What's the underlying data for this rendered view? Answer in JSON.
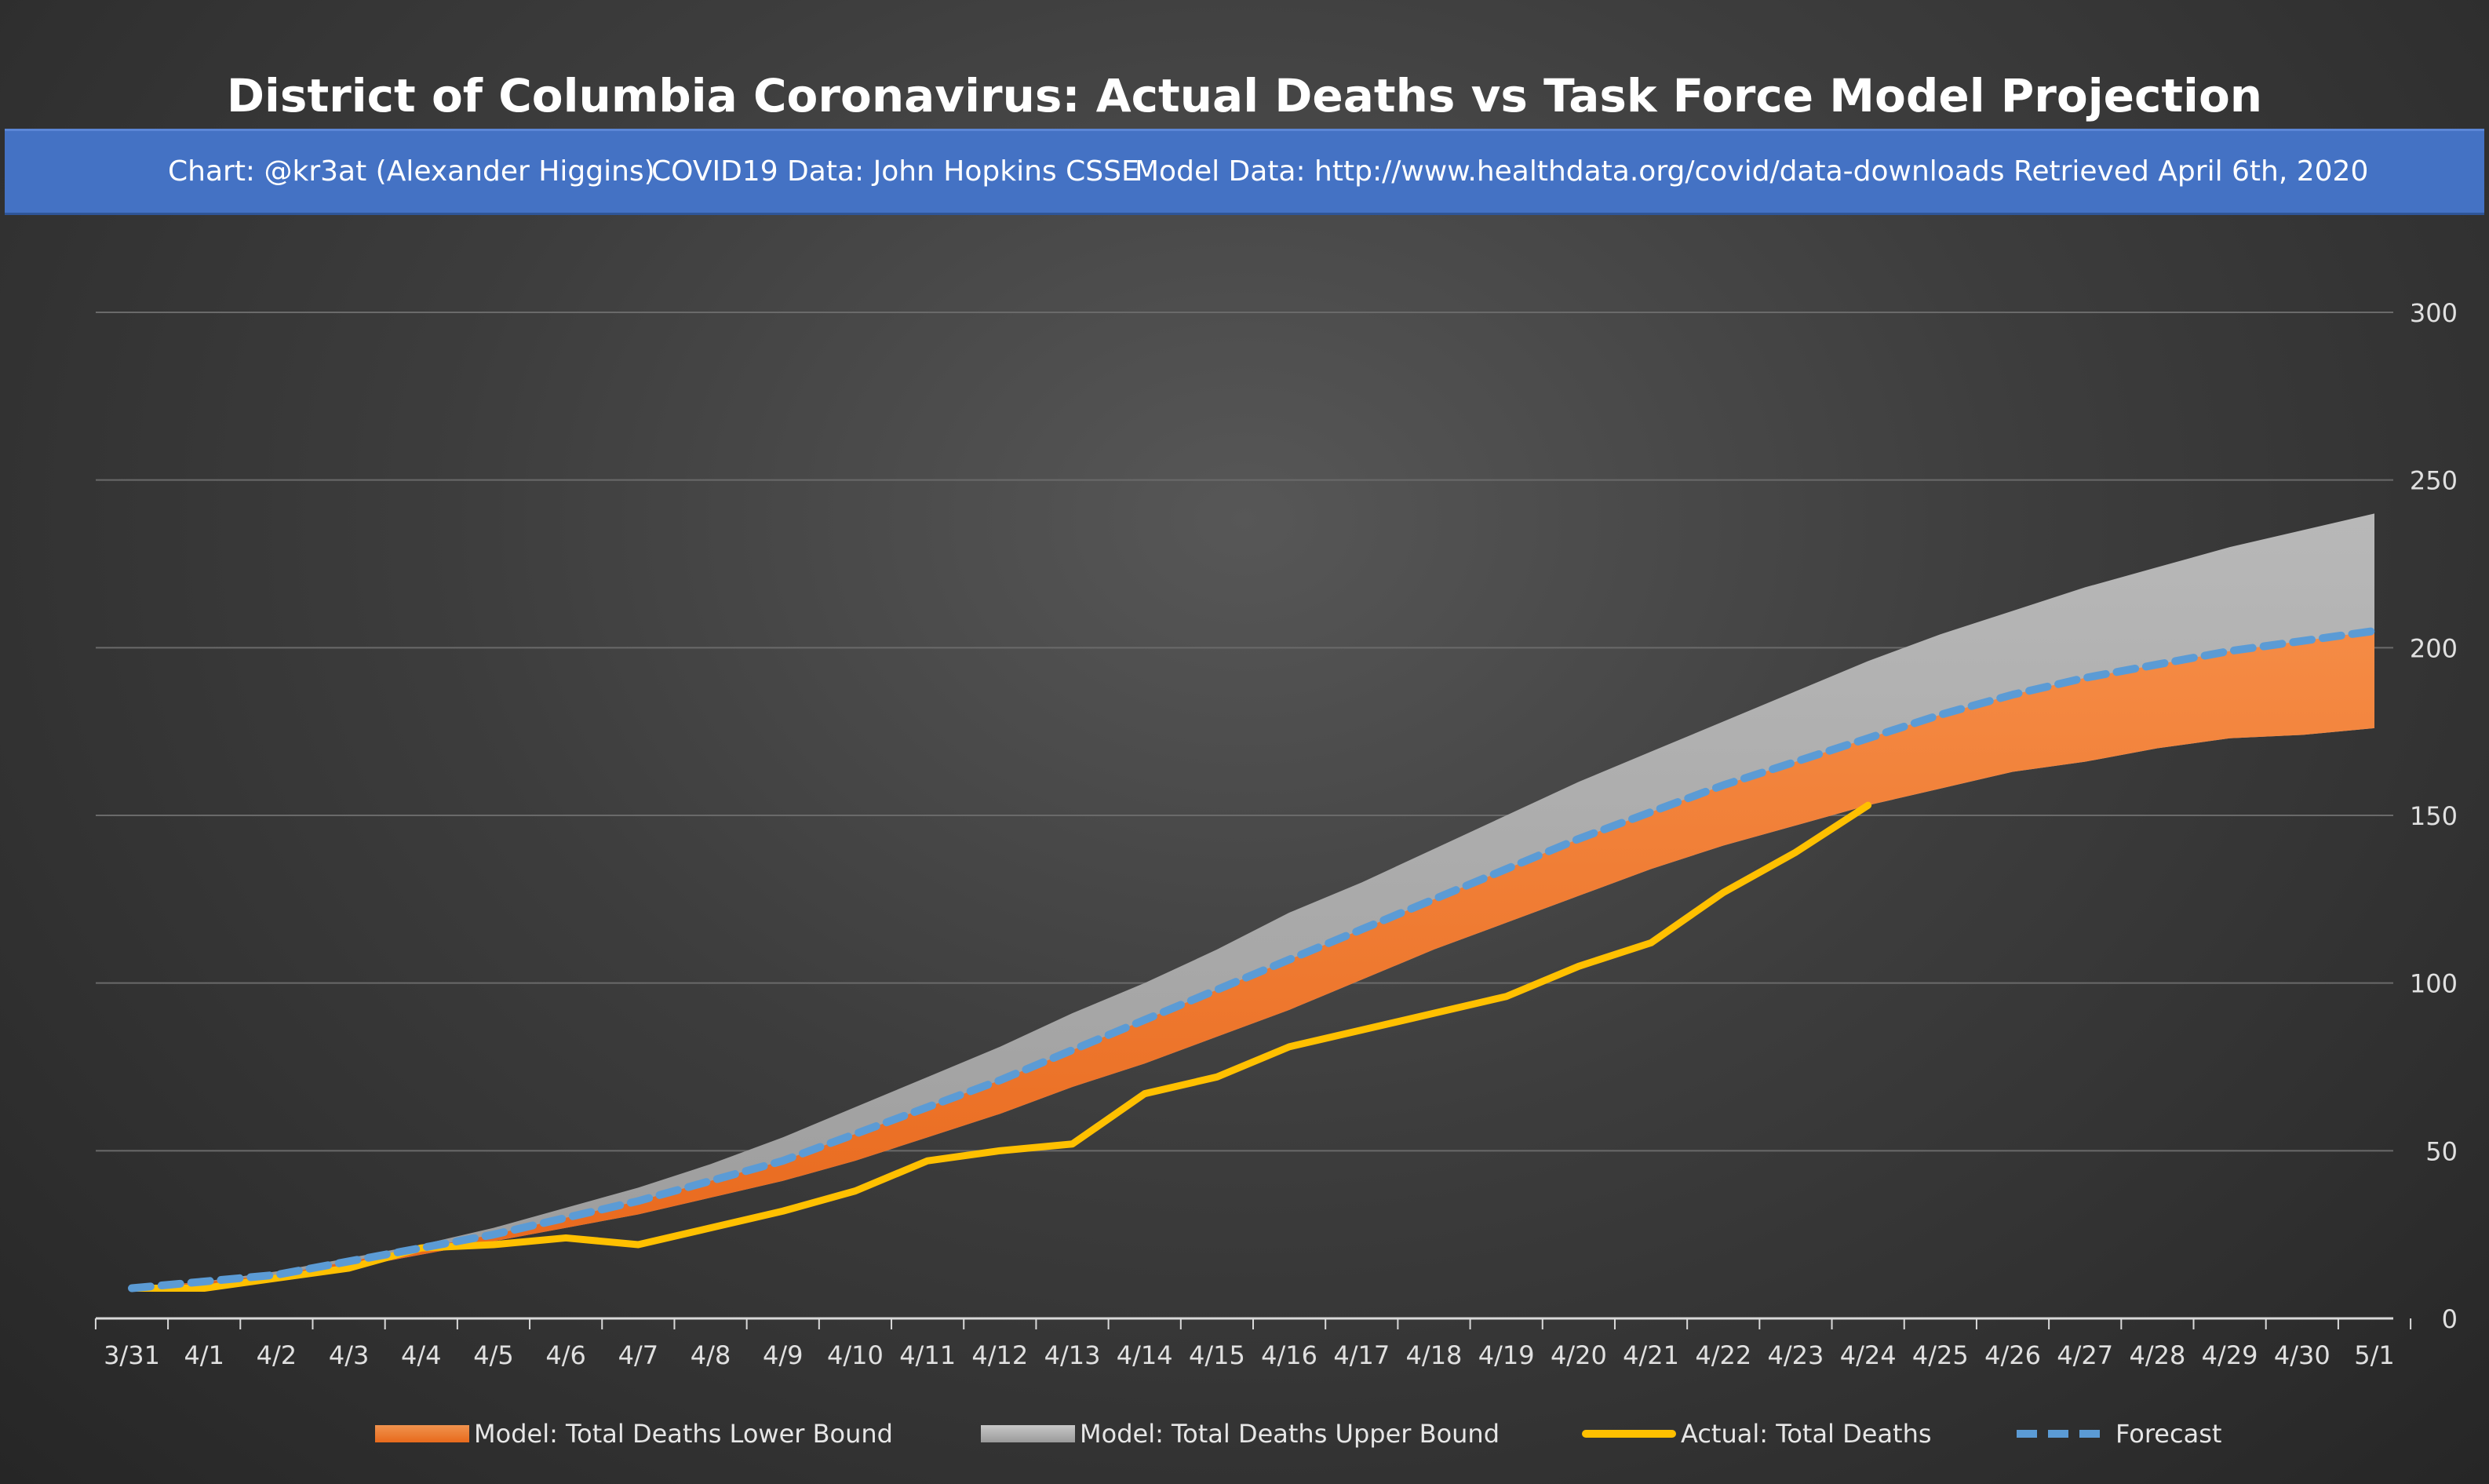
{
  "chart_data": {
    "type": "area",
    "title": "District of Columbia Coronavirus: Actual Deaths vs Task Force Model Projection",
    "subtitle": [
      "Chart: @kr3at (Alexander Higgins)",
      "COVID19 Data: John Hopkins CSSE",
      "Model Data: http://www.healthdata.org/covid/data-downloads Retrieved April 6th, 2020"
    ],
    "categories": [
      "3/31",
      "4/1",
      "4/2",
      "4/3",
      "4/4",
      "4/5",
      "4/6",
      "4/7",
      "4/8",
      "4/9",
      "4/10",
      "4/11",
      "4/12",
      "4/13",
      "4/14",
      "4/15",
      "4/16",
      "4/17",
      "4/18",
      "4/19",
      "4/20",
      "4/21",
      "4/22",
      "4/23",
      "4/24",
      "4/25",
      "4/26",
      "4/27",
      "4/28",
      "4/29",
      "4/30",
      "5/1"
    ],
    "y_axis": {
      "min": 0,
      "max": 300,
      "ticks": [
        0,
        50,
        100,
        150,
        200,
        250,
        300
      ],
      "position": "right"
    },
    "grid": true,
    "legend_position": "bottom",
    "series": [
      {
        "name": "Model: Total Deaths Lower Bound",
        "kind": "area",
        "color": "#f07a2c",
        "values": [
          9,
          10,
          12,
          15,
          19,
          23,
          27,
          31,
          36,
          41,
          47,
          54,
          61,
          69,
          76,
          84,
          92,
          101,
          110,
          118,
          126,
          134,
          141,
          147,
          153,
          158,
          163,
          166,
          170,
          173,
          174,
          176
        ]
      },
      {
        "name": "Model: Total Deaths Upper Bound",
        "kind": "area",
        "color": "#a6a6a6",
        "values": [
          9,
          11,
          14,
          18,
          22,
          27,
          33,
          39,
          46,
          54,
          63,
          72,
          81,
          91,
          100,
          110,
          121,
          130,
          140,
          150,
          160,
          169,
          178,
          187,
          196,
          204,
          211,
          218,
          224,
          230,
          235,
          240
        ]
      },
      {
        "name": "Actual: Total Deaths",
        "kind": "line",
        "color": "#ffc000",
        "values": [
          9,
          9,
          12,
          15,
          21,
          22,
          24,
          22,
          27,
          32,
          38,
          47,
          50,
          52,
          67,
          72,
          81,
          86,
          91,
          96,
          105,
          112,
          127,
          139,
          153,
          null,
          null,
          null,
          null,
          null,
          null,
          null
        ]
      },
      {
        "name": "Forecast",
        "kind": "dashed-line",
        "color": "#5b9bd5",
        "values": [
          9,
          11,
          13,
          17,
          21,
          25,
          30,
          35,
          41,
          47,
          55,
          63,
          71,
          80,
          89,
          98,
          107,
          116,
          125,
          134,
          143,
          151,
          159,
          166,
          173,
          180,
          186,
          191,
          195,
          199,
          202,
          205
        ]
      }
    ]
  }
}
